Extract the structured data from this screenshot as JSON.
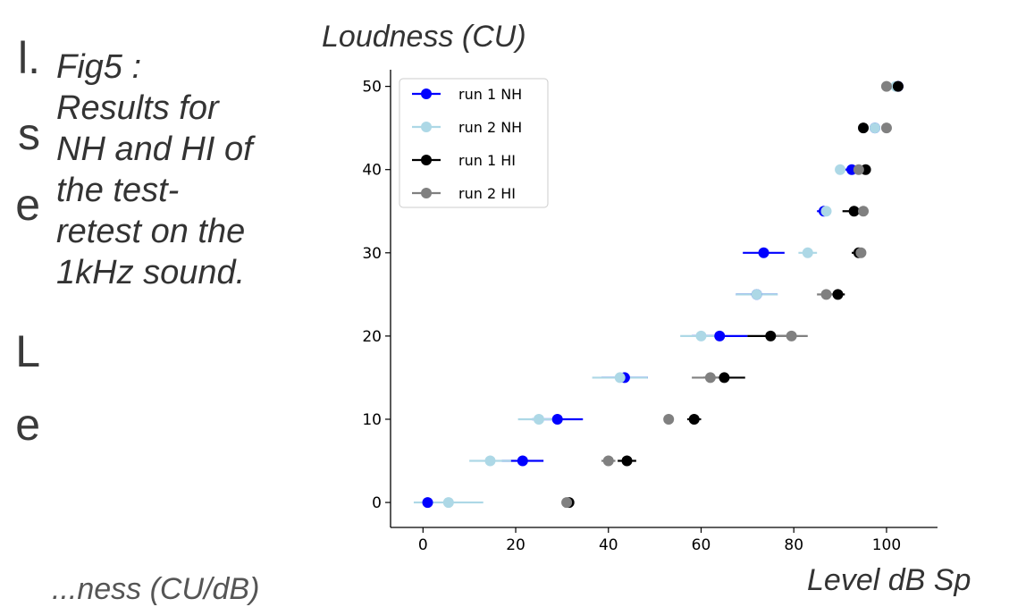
{
  "background_text": {
    "letters": [
      "l.",
      "s",
      "e",
      "L",
      "e"
    ]
  },
  "caption": {
    "lines": [
      "Fig5 :",
      "Results for",
      "NH and HI of",
      "the test-",
      "retest on the",
      "1kHz sound."
    ]
  },
  "bottom_note": "...ness (CU/dB)",
  "chart_data": {
    "type": "scatter",
    "title": "",
    "xlabel": "Level dB Sp",
    "ylabel": "Loudness (CU)",
    "xlim": [
      -7,
      111
    ],
    "ylim": [
      -3,
      52
    ],
    "xticks": [
      0,
      20,
      40,
      60,
      80,
      100
    ],
    "yticks": [
      0,
      10,
      20,
      30,
      40,
      50
    ],
    "grid": false,
    "legend_position": "top-left",
    "series": [
      {
        "name": "run 1 NH",
        "color": "#0000ff",
        "points": [
          {
            "x": 1,
            "y": 0,
            "err": 0
          },
          {
            "x": 21.5,
            "y": 5,
            "err": 4.5
          },
          {
            "x": 29,
            "y": 10,
            "err": 5.5
          },
          {
            "x": 43.5,
            "y": 15,
            "err": 5
          },
          {
            "x": 64,
            "y": 20,
            "err": 6
          },
          {
            "x": 72,
            "y": 25,
            "err": 4.5
          },
          {
            "x": 73.5,
            "y": 30,
            "err": 4.5
          },
          {
            "x": 86.5,
            "y": 35,
            "err": 1.5
          },
          {
            "x": 92.5,
            "y": 40,
            "err": 1.5
          },
          {
            "x": 97.5,
            "y": 45,
            "err": 1
          },
          {
            "x": 102.5,
            "y": 50,
            "err": 0
          }
        ]
      },
      {
        "name": "run 2 NH",
        "color": "#add8e6",
        "points": [
          {
            "x": 5.5,
            "y": 0,
            "err": 7.5
          },
          {
            "x": 14.5,
            "y": 5,
            "err": 4.5
          },
          {
            "x": 25,
            "y": 10,
            "err": 4.5
          },
          {
            "x": 42.5,
            "y": 15,
            "err": 6
          },
          {
            "x": 60,
            "y": 20,
            "err": 4.5
          },
          {
            "x": 72,
            "y": 25,
            "err": 4.5
          },
          {
            "x": 83,
            "y": 30,
            "err": 2
          },
          {
            "x": 87,
            "y": 35,
            "err": 0.5
          },
          {
            "x": 90,
            "y": 40,
            "err": 0.5
          },
          {
            "x": 97.5,
            "y": 45,
            "err": 0.5
          },
          {
            "x": 102,
            "y": 50,
            "err": 0
          }
        ]
      },
      {
        "name": "run 1 HI",
        "color": "#000000",
        "points": [
          {
            "x": 31.5,
            "y": 0,
            "err": 0
          },
          {
            "x": 44,
            "y": 5,
            "err": 2
          },
          {
            "x": 58.5,
            "y": 10,
            "err": 1.5
          },
          {
            "x": 65,
            "y": 15,
            "err": 4.5
          },
          {
            "x": 75,
            "y": 20,
            "err": 5
          },
          {
            "x": 89.5,
            "y": 25,
            "err": 1.5
          },
          {
            "x": 94,
            "y": 30,
            "err": 1.5
          },
          {
            "x": 93,
            "y": 35,
            "err": 2.5
          },
          {
            "x": 95.5,
            "y": 40,
            "err": 1
          },
          {
            "x": 95,
            "y": 45,
            "err": 1
          },
          {
            "x": 102.5,
            "y": 50,
            "err": 0
          }
        ]
      },
      {
        "name": "run 2 HI",
        "color": "#808080",
        "points": [
          {
            "x": 31,
            "y": 0,
            "err": 0
          },
          {
            "x": 40,
            "y": 5,
            "err": 1.5
          },
          {
            "x": 53,
            "y": 10,
            "err": 1
          },
          {
            "x": 62,
            "y": 15,
            "err": 4
          },
          {
            "x": 79.5,
            "y": 20,
            "err": 3.5
          },
          {
            "x": 87,
            "y": 25,
            "err": 2
          },
          {
            "x": 94.5,
            "y": 30,
            "err": 1
          },
          {
            "x": 95,
            "y": 35,
            "err": 1
          },
          {
            "x": 94,
            "y": 40,
            "err": 1
          },
          {
            "x": 100,
            "y": 45,
            "err": 1
          },
          {
            "x": 100,
            "y": 50,
            "err": 0
          }
        ]
      }
    ]
  }
}
